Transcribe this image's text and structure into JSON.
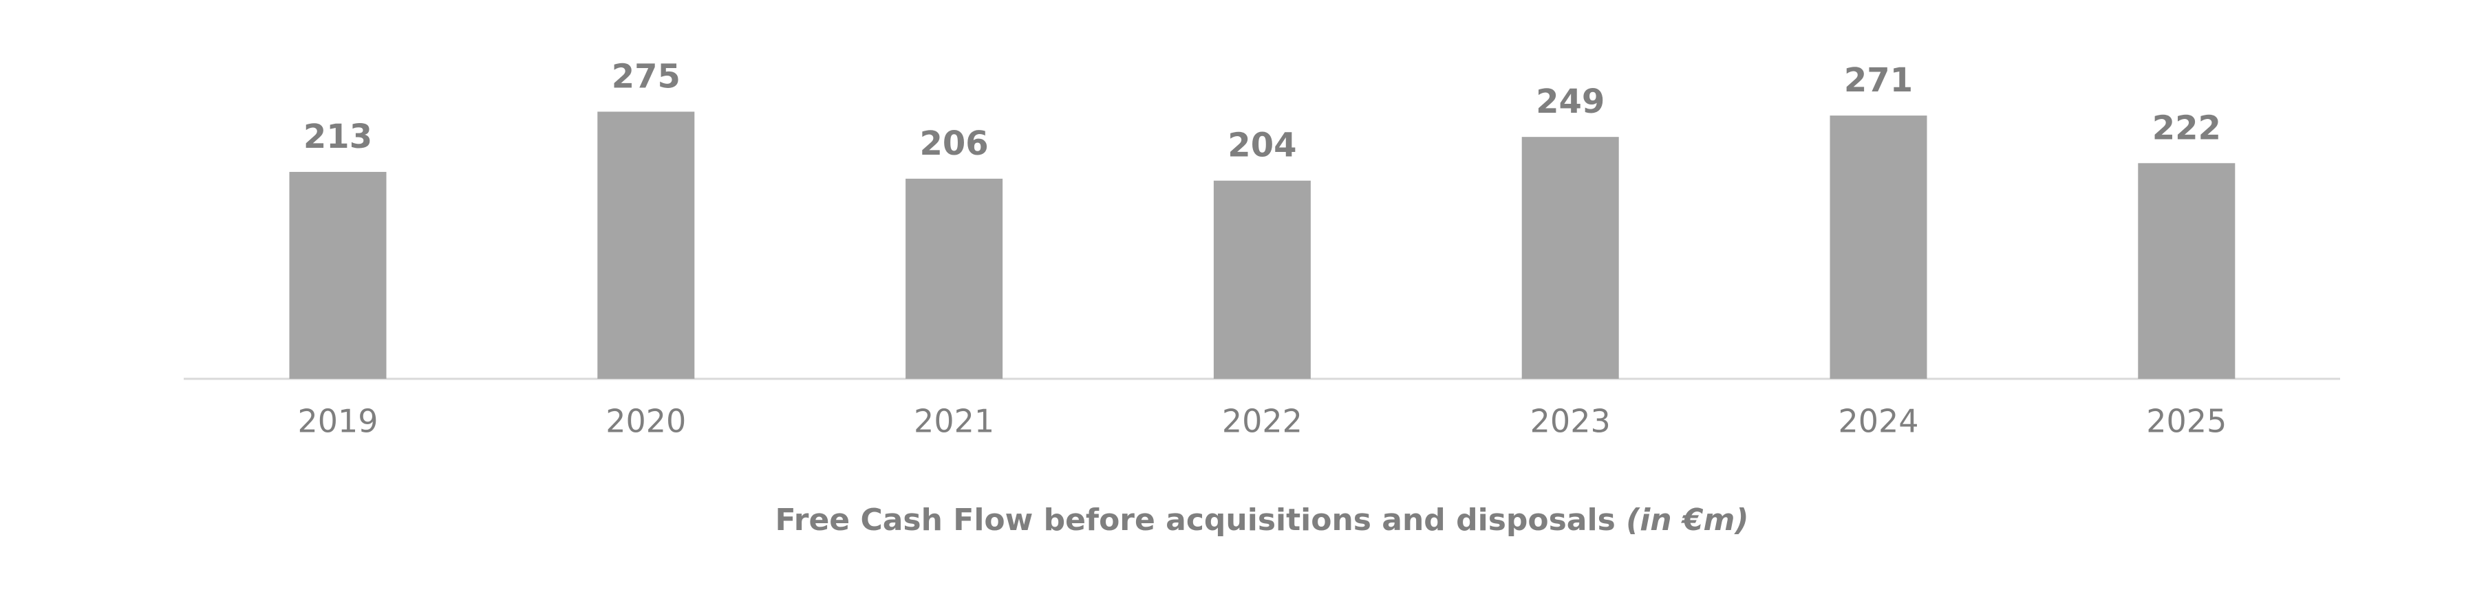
{
  "chart_data": {
    "type": "bar",
    "title": "Free Cash Flow before acquisitions and disposals",
    "title_unit": "(in €m)",
    "categories": [
      "2019",
      "2020",
      "2021",
      "2022",
      "2023",
      "2024",
      "2025"
    ],
    "values": [
      213,
      275,
      206,
      204,
      249,
      271,
      222
    ],
    "color": "#a5a5a5"
  }
}
